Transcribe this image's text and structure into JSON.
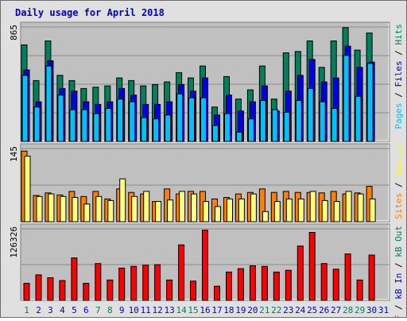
{
  "title": "Daily usage for April 2018",
  "colors": {
    "background": "#e0e0e0",
    "plot_bg": "#c0c0c0",
    "title": "#0000cc",
    "hits": "#00805c",
    "files": "#0000e6",
    "pages": "#00c0ff",
    "visits": "#ffff80",
    "sites": "#ff8000",
    "kbytes": "#ff0000",
    "weekday_label": "#0000cc",
    "weekend_label": "#00805c"
  },
  "chart_data": [
    {
      "type": "bar",
      "panel": "hits-files-pages",
      "title": "Daily usage for April 2018",
      "ylabel_parts": [
        {
          "text": "Pages",
          "color": "#00c0ff"
        },
        {
          "text": " / ",
          "color": "#000000"
        },
        {
          "text": "Files",
          "color": "#0000cc"
        },
        {
          "text": " / ",
          "color": "#000000"
        },
        {
          "text": "Hits",
          "color": "#00805c"
        }
      ],
      "y_max_label": "865",
      "ylim": [
        0,
        865
      ],
      "categories": [
        "1",
        "2",
        "3",
        "4",
        "5",
        "6",
        "7",
        "8",
        "9",
        "10",
        "11",
        "12",
        "13",
        "14",
        "15",
        "16",
        "17",
        "18",
        "19",
        "20",
        "21",
        "22",
        "23",
        "24",
        "25",
        "26",
        "27",
        "28",
        "29",
        "30",
        "31"
      ],
      "series": [
        {
          "name": "Hits",
          "values": [
            730,
            460,
            760,
            500,
            460,
            400,
            410,
            420,
            480,
            460,
            420,
            430,
            450,
            520,
            480,
            570,
            260,
            490,
            320,
            390,
            570,
            320,
            670,
            680,
            760,
            560,
            760,
            860,
            690,
            820,
            0
          ]
        },
        {
          "name": "Files",
          "values": [
            540,
            300,
            610,
            400,
            380,
            300,
            280,
            300,
            400,
            350,
            280,
            280,
            300,
            430,
            380,
            480,
            200,
            350,
            230,
            300,
            420,
            230,
            380,
            500,
            620,
            450,
            480,
            720,
            560,
            600,
            0
          ]
        },
        {
          "name": "Pages",
          "values": [
            500,
            260,
            570,
            350,
            240,
            240,
            210,
            250,
            320,
            300,
            180,
            170,
            200,
            360,
            330,
            330,
            120,
            210,
            70,
            170,
            310,
            240,
            220,
            310,
            400,
            300,
            250,
            650,
            340,
            590,
            0
          ]
        }
      ]
    },
    {
      "type": "bar",
      "panel": "visits-sites",
      "ylabel_parts": [
        {
          "text": "Sites",
          "color": "#ff8000"
        },
        {
          "text": " / ",
          "color": "#000000"
        },
        {
          "text": "Visits",
          "color": "#ffff00"
        }
      ],
      "y_max_label": "145",
      "ylim": [
        0,
        145
      ],
      "categories": [
        "1",
        "2",
        "3",
        "4",
        "5",
        "6",
        "7",
        "8",
        "9",
        "10",
        "11",
        "12",
        "13",
        "14",
        "15",
        "16",
        "17",
        "18",
        "19",
        "20",
        "21",
        "22",
        "23",
        "24",
        "25",
        "26",
        "27",
        "28",
        "29",
        "30",
        "31"
      ],
      "series": [
        {
          "name": "Visits",
          "values": [
            130,
            50,
            55,
            50,
            48,
            35,
            50,
            42,
            85,
            50,
            60,
            40,
            43,
            60,
            55,
            40,
            30,
            45,
            45,
            55,
            20,
            40,
            45,
            45,
            60,
            42,
            40,
            60,
            55,
            45,
            0
          ]
        },
        {
          "name": "Sites",
          "values": [
            140,
            52,
            57,
            53,
            60,
            50,
            60,
            45,
            65,
            58,
            55,
            40,
            65,
            55,
            60,
            60,
            45,
            48,
            55,
            58,
            65,
            58,
            60,
            58,
            58,
            57,
            60,
            55,
            57,
            70,
            0
          ]
        }
      ]
    },
    {
      "type": "bar",
      "panel": "kbytes",
      "ylabel_parts": [
        {
          "text": "kB F",
          "color": "#ff0000"
        },
        {
          "text": " / ",
          "color": "#000000"
        },
        {
          "text": "kB In",
          "color": "#0000cc"
        },
        {
          "text": " / ",
          "color": "#000000"
        },
        {
          "text": "kB Out",
          "color": "#00805c"
        }
      ],
      "y_max_label": "126326",
      "ylim": [
        0,
        126326
      ],
      "categories": [
        "1",
        "2",
        "3",
        "4",
        "5",
        "6",
        "7",
        "8",
        "9",
        "10",
        "11",
        "12",
        "13",
        "14",
        "15",
        "16",
        "17",
        "18",
        "19",
        "20",
        "21",
        "22",
        "23",
        "24",
        "25",
        "26",
        "27",
        "28",
        "29",
        "30",
        "31"
      ],
      "series": [
        {
          "name": "kB F",
          "values": [
            30000,
            45000,
            40000,
            35000,
            75000,
            30000,
            65000,
            36000,
            57000,
            60000,
            62000,
            63000,
            36000,
            98000,
            34000,
            124000,
            25000,
            50000,
            56000,
            61000,
            60000,
            50000,
            53000,
            96000,
            120000,
            65000,
            55000,
            82000,
            36000,
            80000,
            0
          ]
        }
      ]
    }
  ],
  "x_labels": [
    {
      "label": "1",
      "weekend": true
    },
    {
      "label": "2",
      "weekend": false
    },
    {
      "label": "3",
      "weekend": false
    },
    {
      "label": "4",
      "weekend": false
    },
    {
      "label": "5",
      "weekend": false
    },
    {
      "label": "6",
      "weekend": false
    },
    {
      "label": "7",
      "weekend": true
    },
    {
      "label": "8",
      "weekend": true
    },
    {
      "label": "9",
      "weekend": false
    },
    {
      "label": "10",
      "weekend": false
    },
    {
      "label": "11",
      "weekend": false
    },
    {
      "label": "12",
      "weekend": false
    },
    {
      "label": "13",
      "weekend": false
    },
    {
      "label": "14",
      "weekend": true
    },
    {
      "label": "15",
      "weekend": true
    },
    {
      "label": "16",
      "weekend": false
    },
    {
      "label": "17",
      "weekend": false
    },
    {
      "label": "18",
      "weekend": false
    },
    {
      "label": "19",
      "weekend": false
    },
    {
      "label": "20",
      "weekend": false
    },
    {
      "label": "21",
      "weekend": true
    },
    {
      "label": "22",
      "weekend": true
    },
    {
      "label": "23",
      "weekend": false
    },
    {
      "label": "24",
      "weekend": false
    },
    {
      "label": "25",
      "weekend": false
    },
    {
      "label": "26",
      "weekend": false
    },
    {
      "label": "27",
      "weekend": false
    },
    {
      "label": "28",
      "weekend": true
    },
    {
      "label": "29",
      "weekend": true
    },
    {
      "label": "30",
      "weekend": false
    },
    {
      "label": "31",
      "weekend": false
    }
  ]
}
